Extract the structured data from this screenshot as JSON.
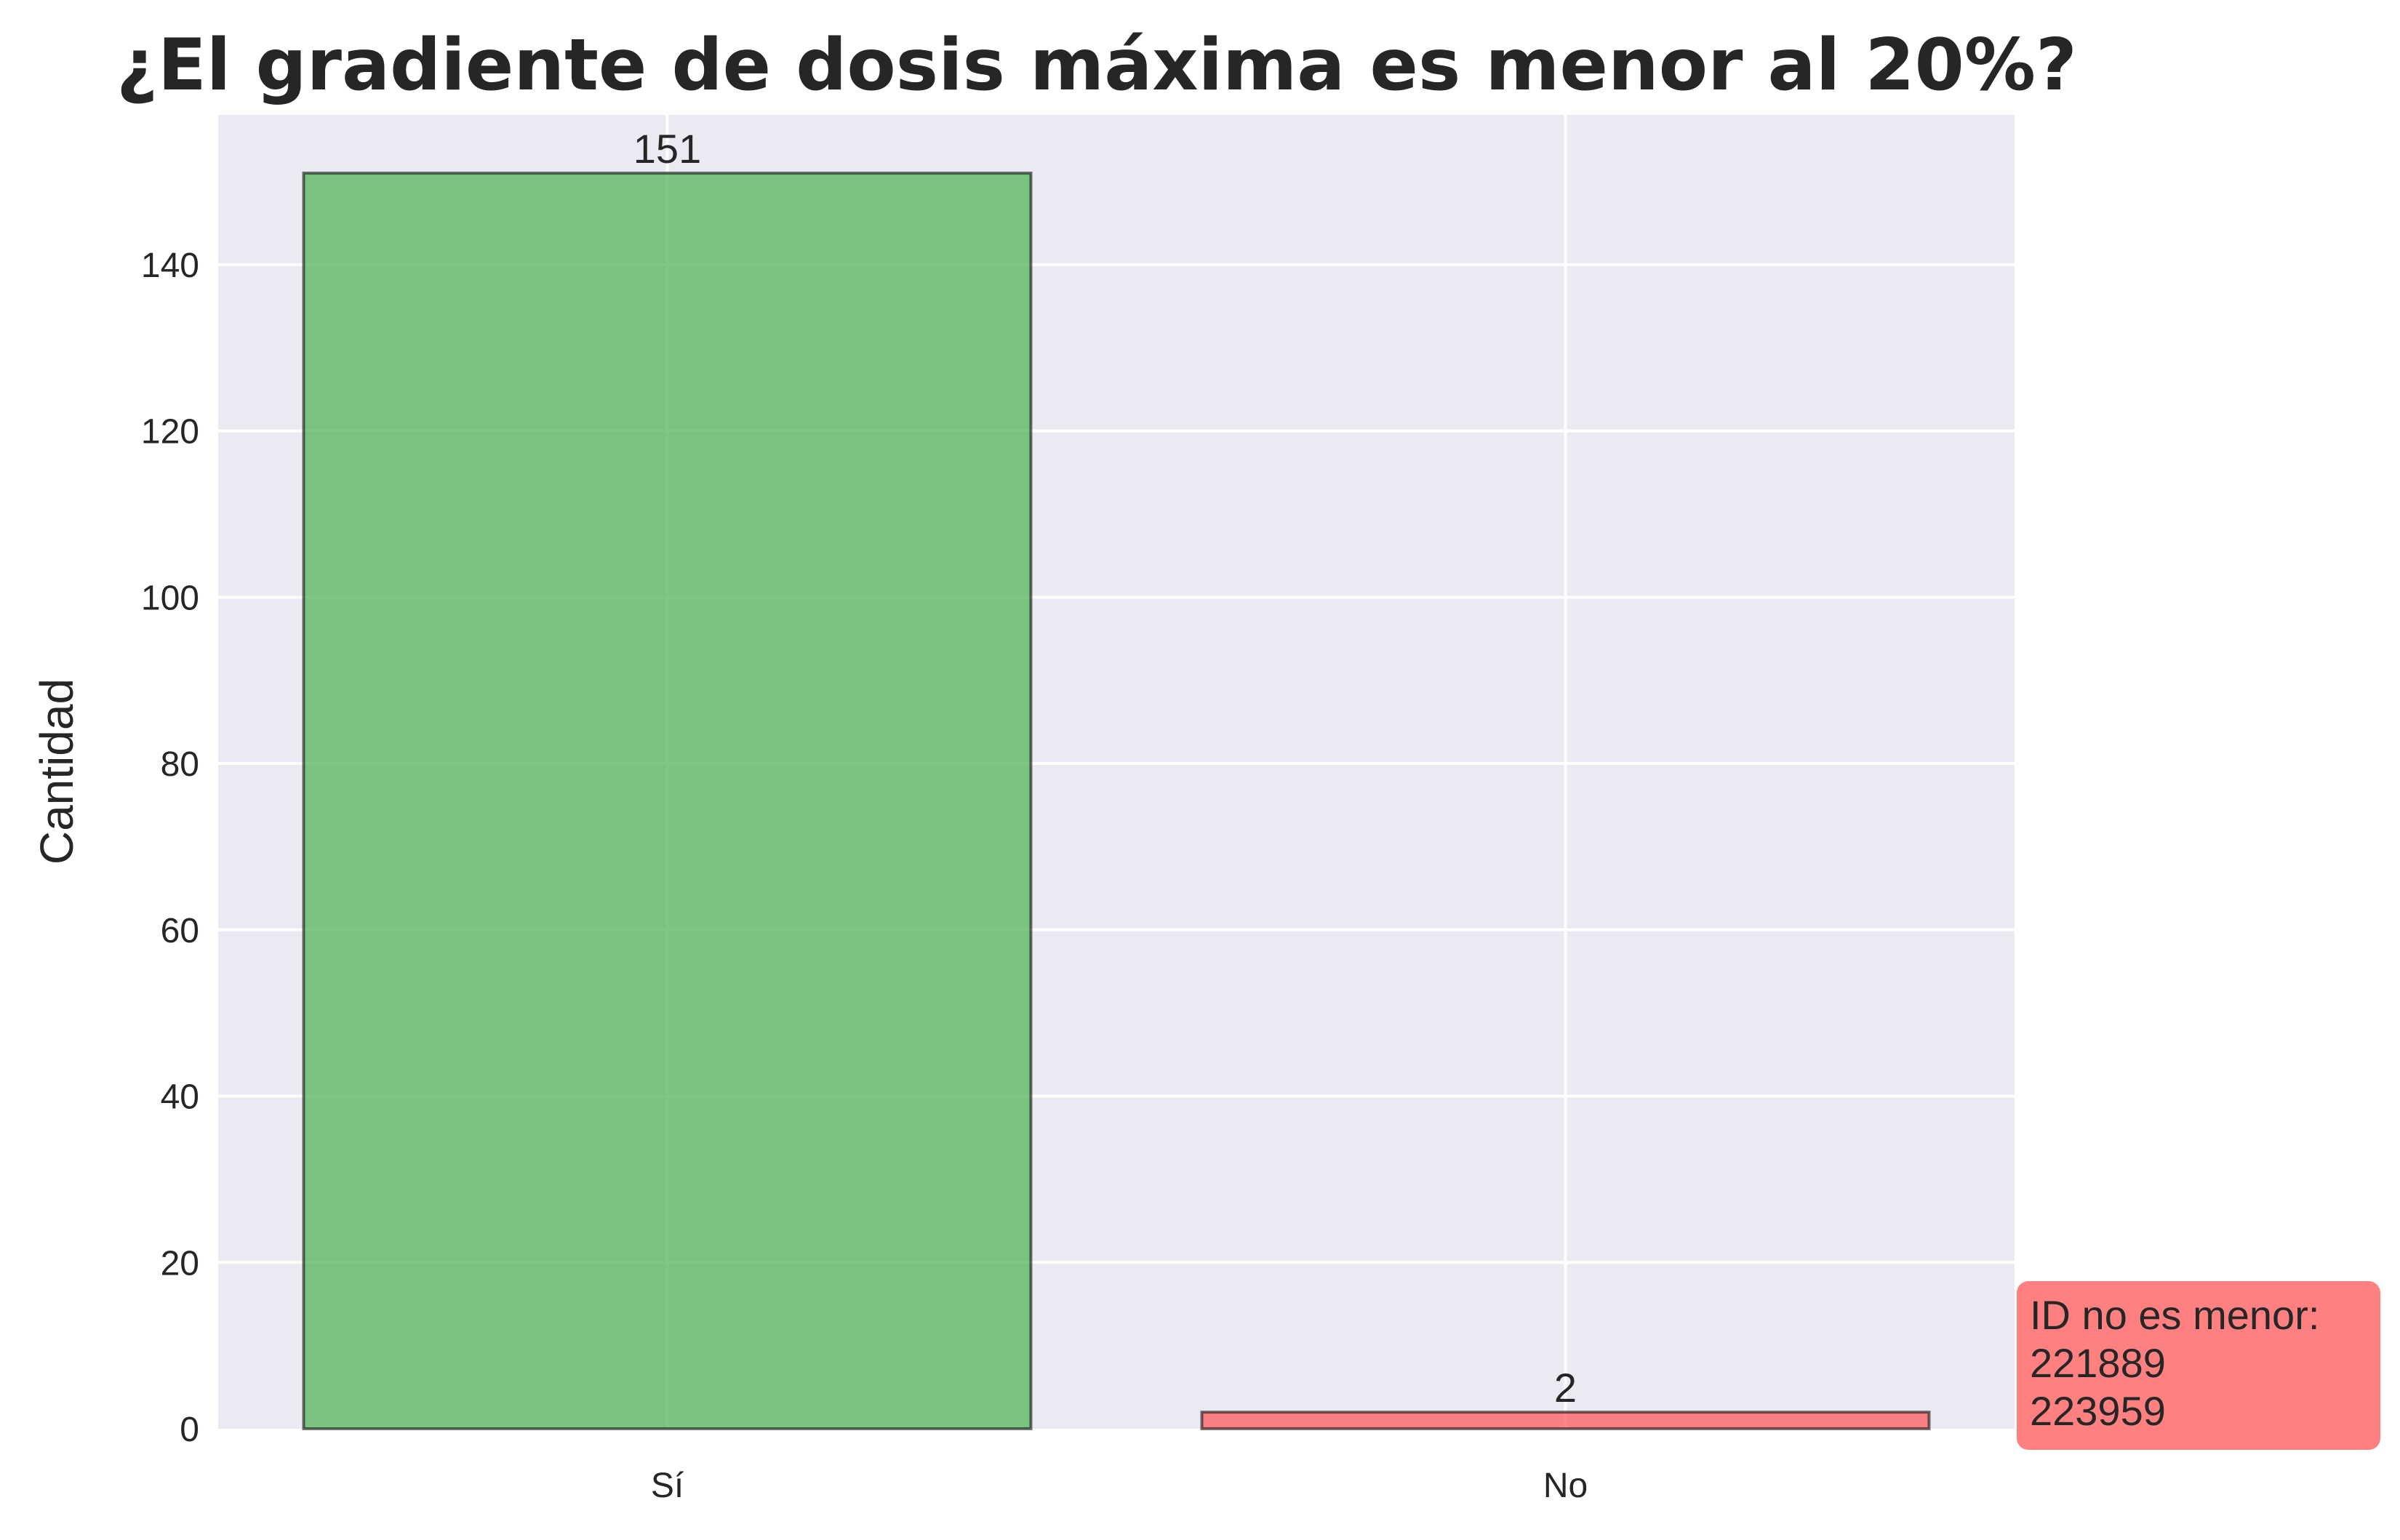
{
  "chart_data": {
    "type": "bar",
    "title": "¿El gradiente de dosis máxima es menor al 20%?",
    "xlabel": "",
    "ylabel": "Cantidad",
    "categories": [
      "Sí",
      "No"
    ],
    "values": [
      151,
      2
    ],
    "value_labels": [
      "151",
      "2"
    ],
    "bar_colors": [
      "#4caf50",
      "#ff5252"
    ],
    "ylim": [
      0,
      158
    ],
    "yticks": [
      0,
      20,
      40,
      60,
      80,
      100,
      120,
      140
    ],
    "ytick_labels": [
      "0",
      "20",
      "40",
      "60",
      "80",
      "100",
      "120",
      "140"
    ],
    "grid": true,
    "annotation": {
      "lines": [
        "ID no es menor:",
        "221889",
        "223959"
      ],
      "background": "#ff8080"
    },
    "colors": {
      "plot_background": "#eaeaf2",
      "grid": "#ffffff",
      "text": "#262626"
    }
  }
}
